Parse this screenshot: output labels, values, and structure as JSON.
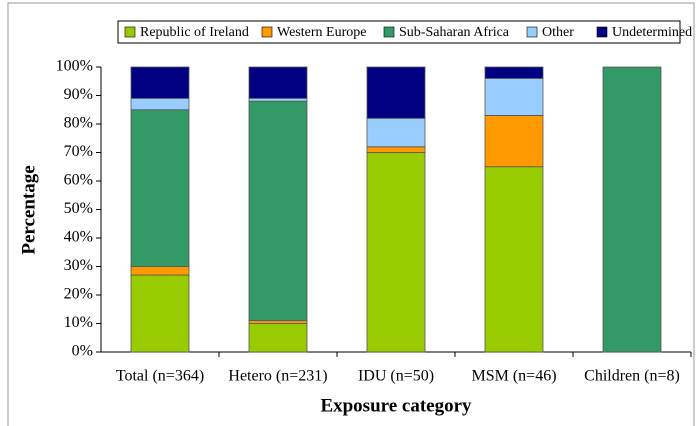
{
  "chart_data": {
    "type": "stacked_bar",
    "x_label": "Exposure category",
    "y_label": "Percentage",
    "categories": [
      "Total (n=364)",
      "Hetero (n=231)",
      "IDU (n=50)",
      "MSM (n=46)",
      "Children (n=8)"
    ],
    "series": [
      {
        "name": "Republic of Ireland",
        "color": "#99cc00",
        "values": [
          27,
          10,
          70,
          65,
          0
        ]
      },
      {
        "name": "Western Europe",
        "color": "#ff9900",
        "values": [
          3,
          1,
          2,
          18,
          0
        ]
      },
      {
        "name": "Sub-Saharan Africa",
        "color": "#339966",
        "values": [
          55,
          77,
          0,
          0,
          100
        ]
      },
      {
        "name": "Other",
        "color": "#99ccff",
        "values": [
          4,
          1,
          10,
          13,
          0
        ]
      },
      {
        "name": "Undetermined",
        "color": "#000080",
        "values": [
          11,
          11,
          18,
          4,
          0
        ]
      }
    ],
    "ylim": [
      0,
      100
    ],
    "yticks": [
      {
        "value": 0,
        "label": "0%"
      },
      {
        "value": 10,
        "label": "10%"
      },
      {
        "value": 20,
        "label": "20%"
      },
      {
        "value": 30,
        "label": "30%"
      },
      {
        "value": 40,
        "label": "40%"
      },
      {
        "value": 50,
        "label": "50%"
      },
      {
        "value": 60,
        "label": "60%"
      },
      {
        "value": 70,
        "label": "70%"
      },
      {
        "value": 80,
        "label": "80%"
      },
      {
        "value": 90,
        "label": "90%"
      },
      {
        "value": 100,
        "label": "100%"
      }
    ],
    "legend": "top"
  }
}
